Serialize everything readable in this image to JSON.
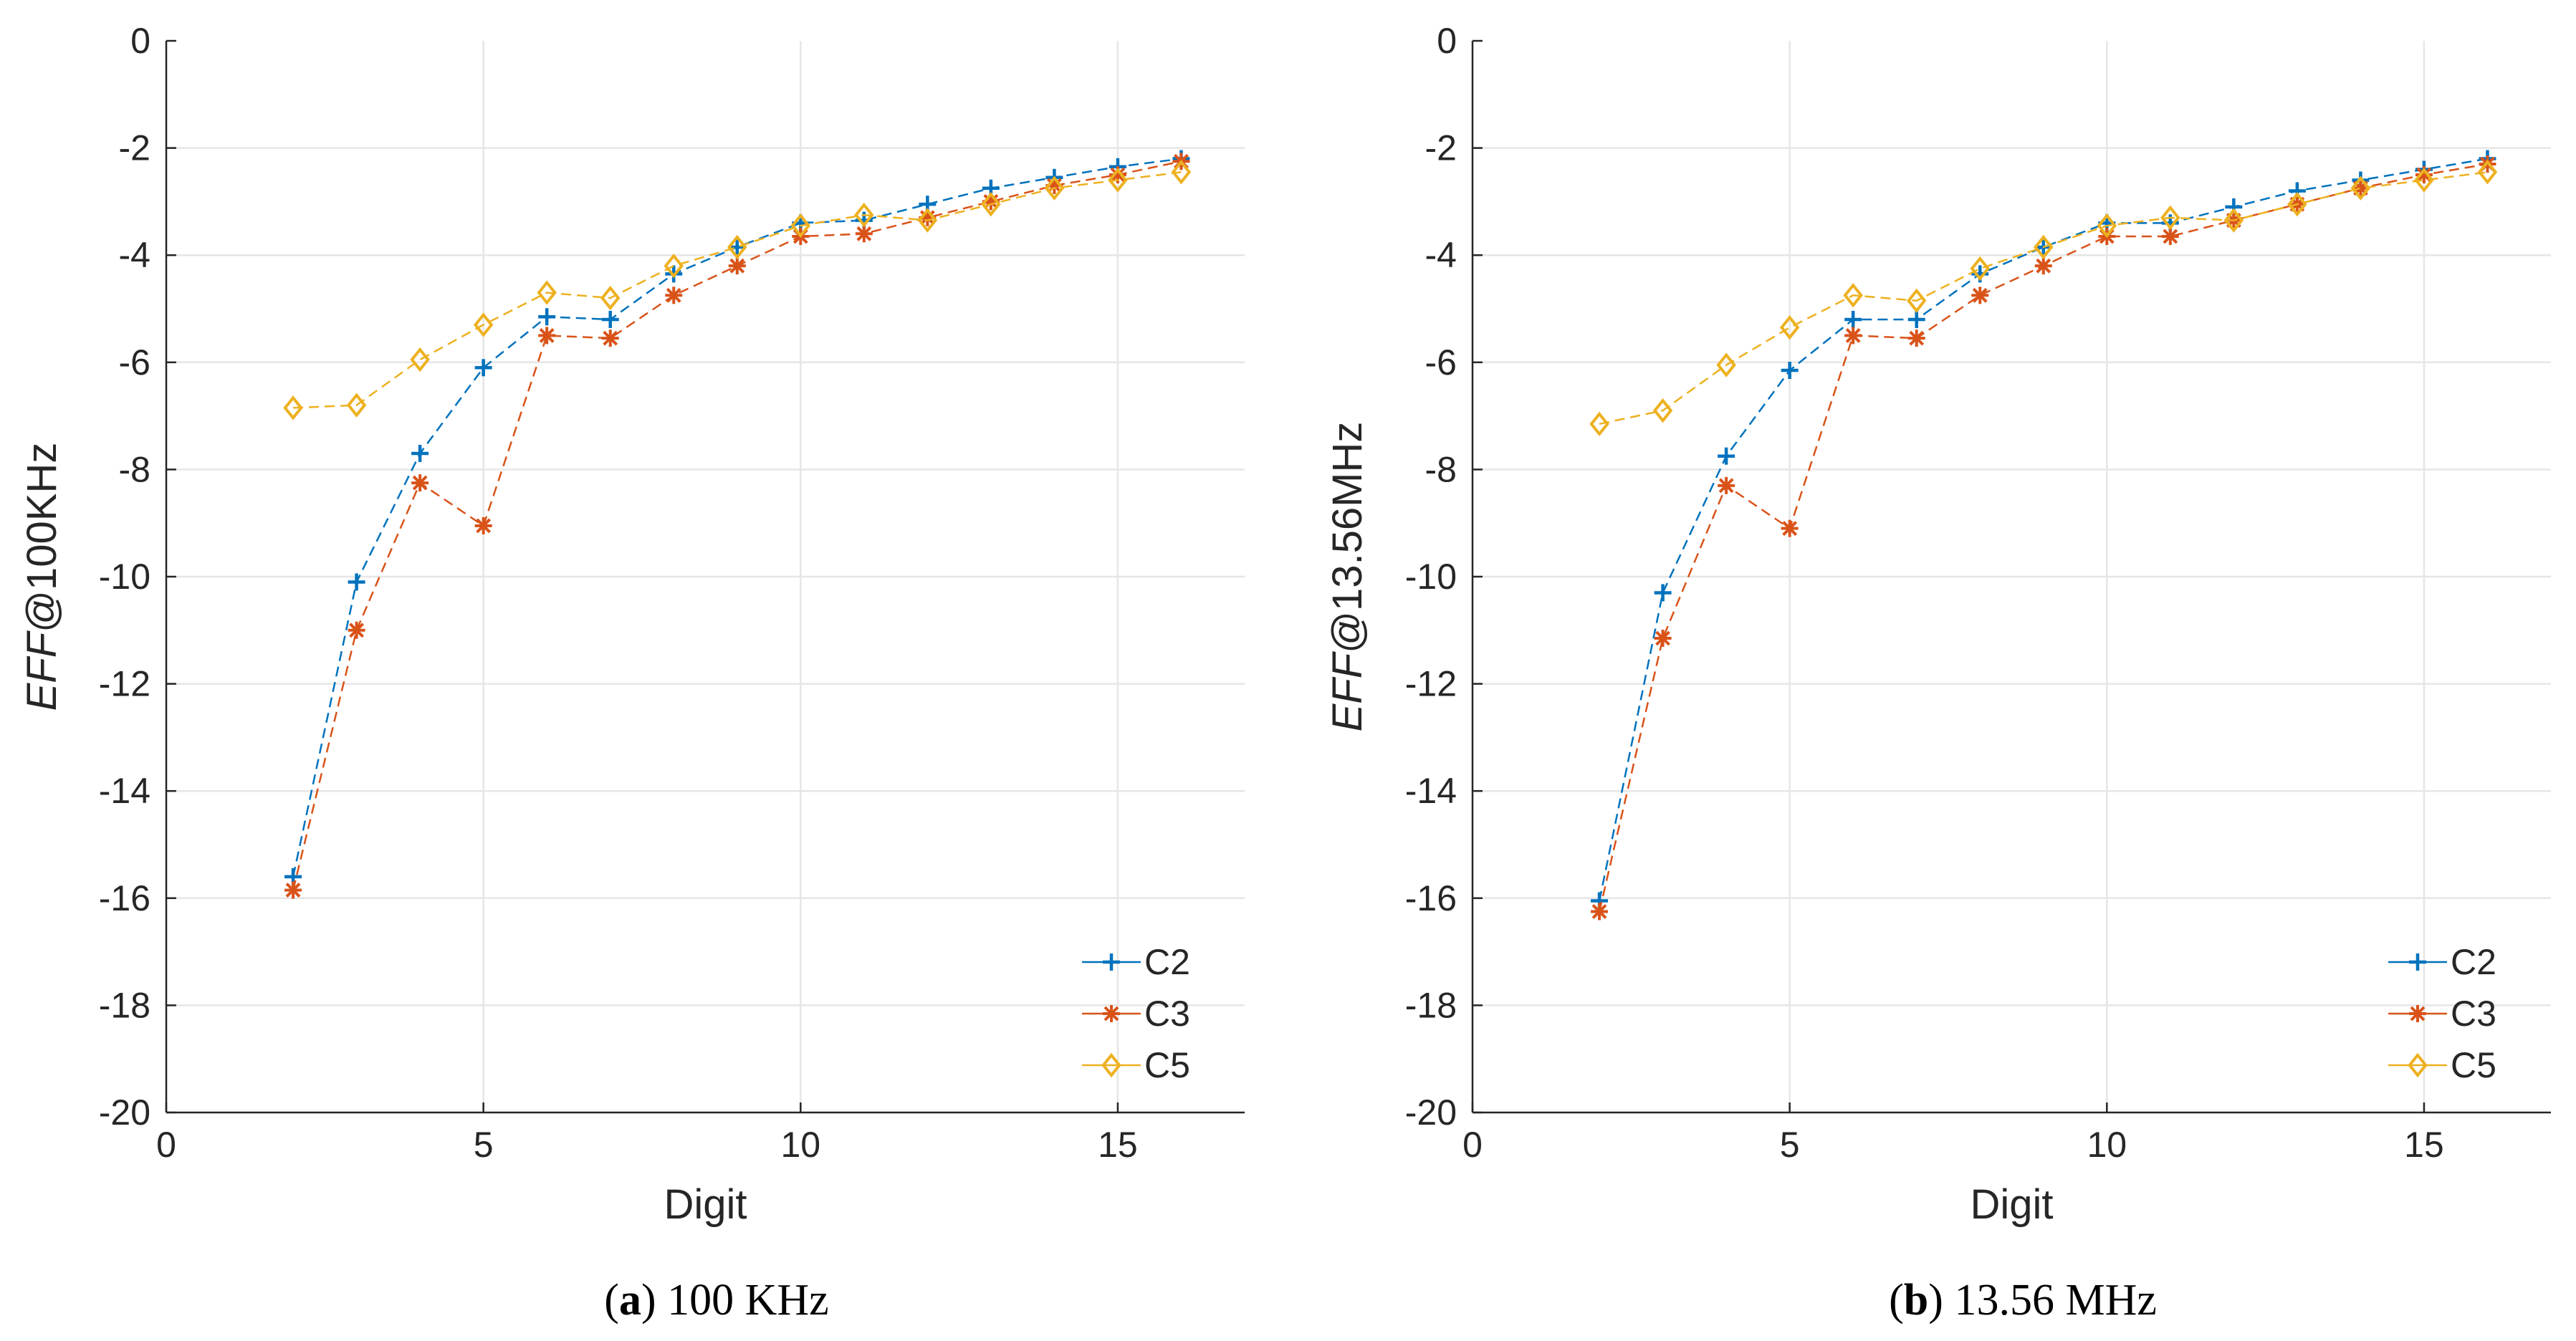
{
  "chart_data": [
    {
      "type": "line",
      "xlabel": "Digit",
      "ylabel_italic": "EFF",
      "ylabel_rest": "@100KHz",
      "xlim": [
        0,
        17
      ],
      "ylim": [
        -20,
        0
      ],
      "xticks": [
        0,
        5,
        10,
        15
      ],
      "xtick_labels": [
        "0",
        "5",
        "10",
        "15"
      ],
      "yticks": [
        0,
        -2,
        -4,
        -6,
        -8,
        -10,
        -12,
        -14,
        -16,
        -18,
        -20
      ],
      "ytick_labels": [
        "0",
        "-2",
        "-4",
        "-6",
        "-8",
        "-10",
        "-12",
        "-14",
        "-16",
        "-18",
        "-20"
      ],
      "grid": true,
      "legend_position": "bottom-right",
      "caption_letter": "a",
      "caption_text": " 100 KHz",
      "series": [
        {
          "name": "C2",
          "marker": "plus",
          "color": "#0072BD",
          "x": [
            2,
            3,
            4,
            5,
            6,
            7,
            8,
            9,
            10,
            11,
            12,
            13,
            14,
            15,
            16
          ],
          "values": [
            -15.6,
            -10.1,
            -7.7,
            -6.1,
            -5.15,
            -5.2,
            -4.35,
            -3.85,
            -3.4,
            -3.35,
            -3.05,
            -2.75,
            -2.55,
            -2.35,
            -2.2
          ]
        },
        {
          "name": "C3",
          "marker": "star",
          "color": "#D95319",
          "x": [
            2,
            3,
            4,
            5,
            6,
            7,
            8,
            9,
            10,
            11,
            12,
            13,
            14,
            15,
            16
          ],
          "values": [
            -15.85,
            -11.0,
            -8.25,
            -9.05,
            -5.5,
            -5.55,
            -4.75,
            -4.2,
            -3.65,
            -3.6,
            -3.3,
            -3.0,
            -2.7,
            -2.5,
            -2.25
          ]
        },
        {
          "name": "C5",
          "marker": "diamond",
          "color": "#EDB120",
          "x": [
            2,
            3,
            4,
            5,
            6,
            7,
            8,
            9,
            10,
            11,
            12,
            13,
            14,
            15,
            16
          ],
          "values": [
            -6.85,
            -6.8,
            -5.95,
            -5.3,
            -4.7,
            -4.8,
            -4.2,
            -3.85,
            -3.45,
            -3.25,
            -3.35,
            -3.05,
            -2.75,
            -2.6,
            -2.45
          ]
        }
      ]
    },
    {
      "type": "line",
      "xlabel": "Digit",
      "ylabel_italic": "EFF",
      "ylabel_rest": "@13.56MHz",
      "xlim": [
        0,
        17
      ],
      "ylim": [
        -20,
        0
      ],
      "xticks": [
        0,
        5,
        10,
        15
      ],
      "xtick_labels": [
        "0",
        "5",
        "10",
        "15"
      ],
      "yticks": [
        0,
        -2,
        -4,
        -6,
        -8,
        -10,
        -12,
        -14,
        -16,
        -18,
        -20
      ],
      "ytick_labels": [
        "0",
        "-2",
        "-4",
        "-6",
        "-8",
        "-10",
        "-12",
        "-14",
        "-16",
        "-18",
        "-20"
      ],
      "grid": true,
      "legend_position": "bottom-right",
      "caption_letter": "b",
      "caption_text": " 13.56 MHz",
      "series": [
        {
          "name": "C2",
          "marker": "plus",
          "color": "#0072BD",
          "x": [
            2,
            3,
            4,
            5,
            6,
            7,
            8,
            9,
            10,
            11,
            12,
            13,
            14,
            15,
            16
          ],
          "values": [
            -16.05,
            -10.3,
            -7.75,
            -6.15,
            -5.2,
            -5.2,
            -4.35,
            -3.85,
            -3.4,
            -3.4,
            -3.1,
            -2.8,
            -2.6,
            -2.4,
            -2.2
          ]
        },
        {
          "name": "C3",
          "marker": "star",
          "color": "#D95319",
          "x": [
            2,
            3,
            4,
            5,
            6,
            7,
            8,
            9,
            10,
            11,
            12,
            13,
            14,
            15,
            16
          ],
          "values": [
            -16.25,
            -11.15,
            -8.3,
            -9.1,
            -5.5,
            -5.55,
            -4.75,
            -4.2,
            -3.65,
            -3.65,
            -3.35,
            -3.05,
            -2.75,
            -2.5,
            -2.3
          ]
        },
        {
          "name": "C5",
          "marker": "diamond",
          "color": "#EDB120",
          "x": [
            2,
            3,
            4,
            5,
            6,
            7,
            8,
            9,
            10,
            11,
            12,
            13,
            14,
            15,
            16
          ],
          "values": [
            -7.15,
            -6.9,
            -6.05,
            -5.35,
            -4.75,
            -4.85,
            -4.25,
            -3.85,
            -3.45,
            -3.3,
            -3.35,
            -3.05,
            -2.75,
            -2.6,
            -2.45
          ]
        }
      ]
    }
  ]
}
